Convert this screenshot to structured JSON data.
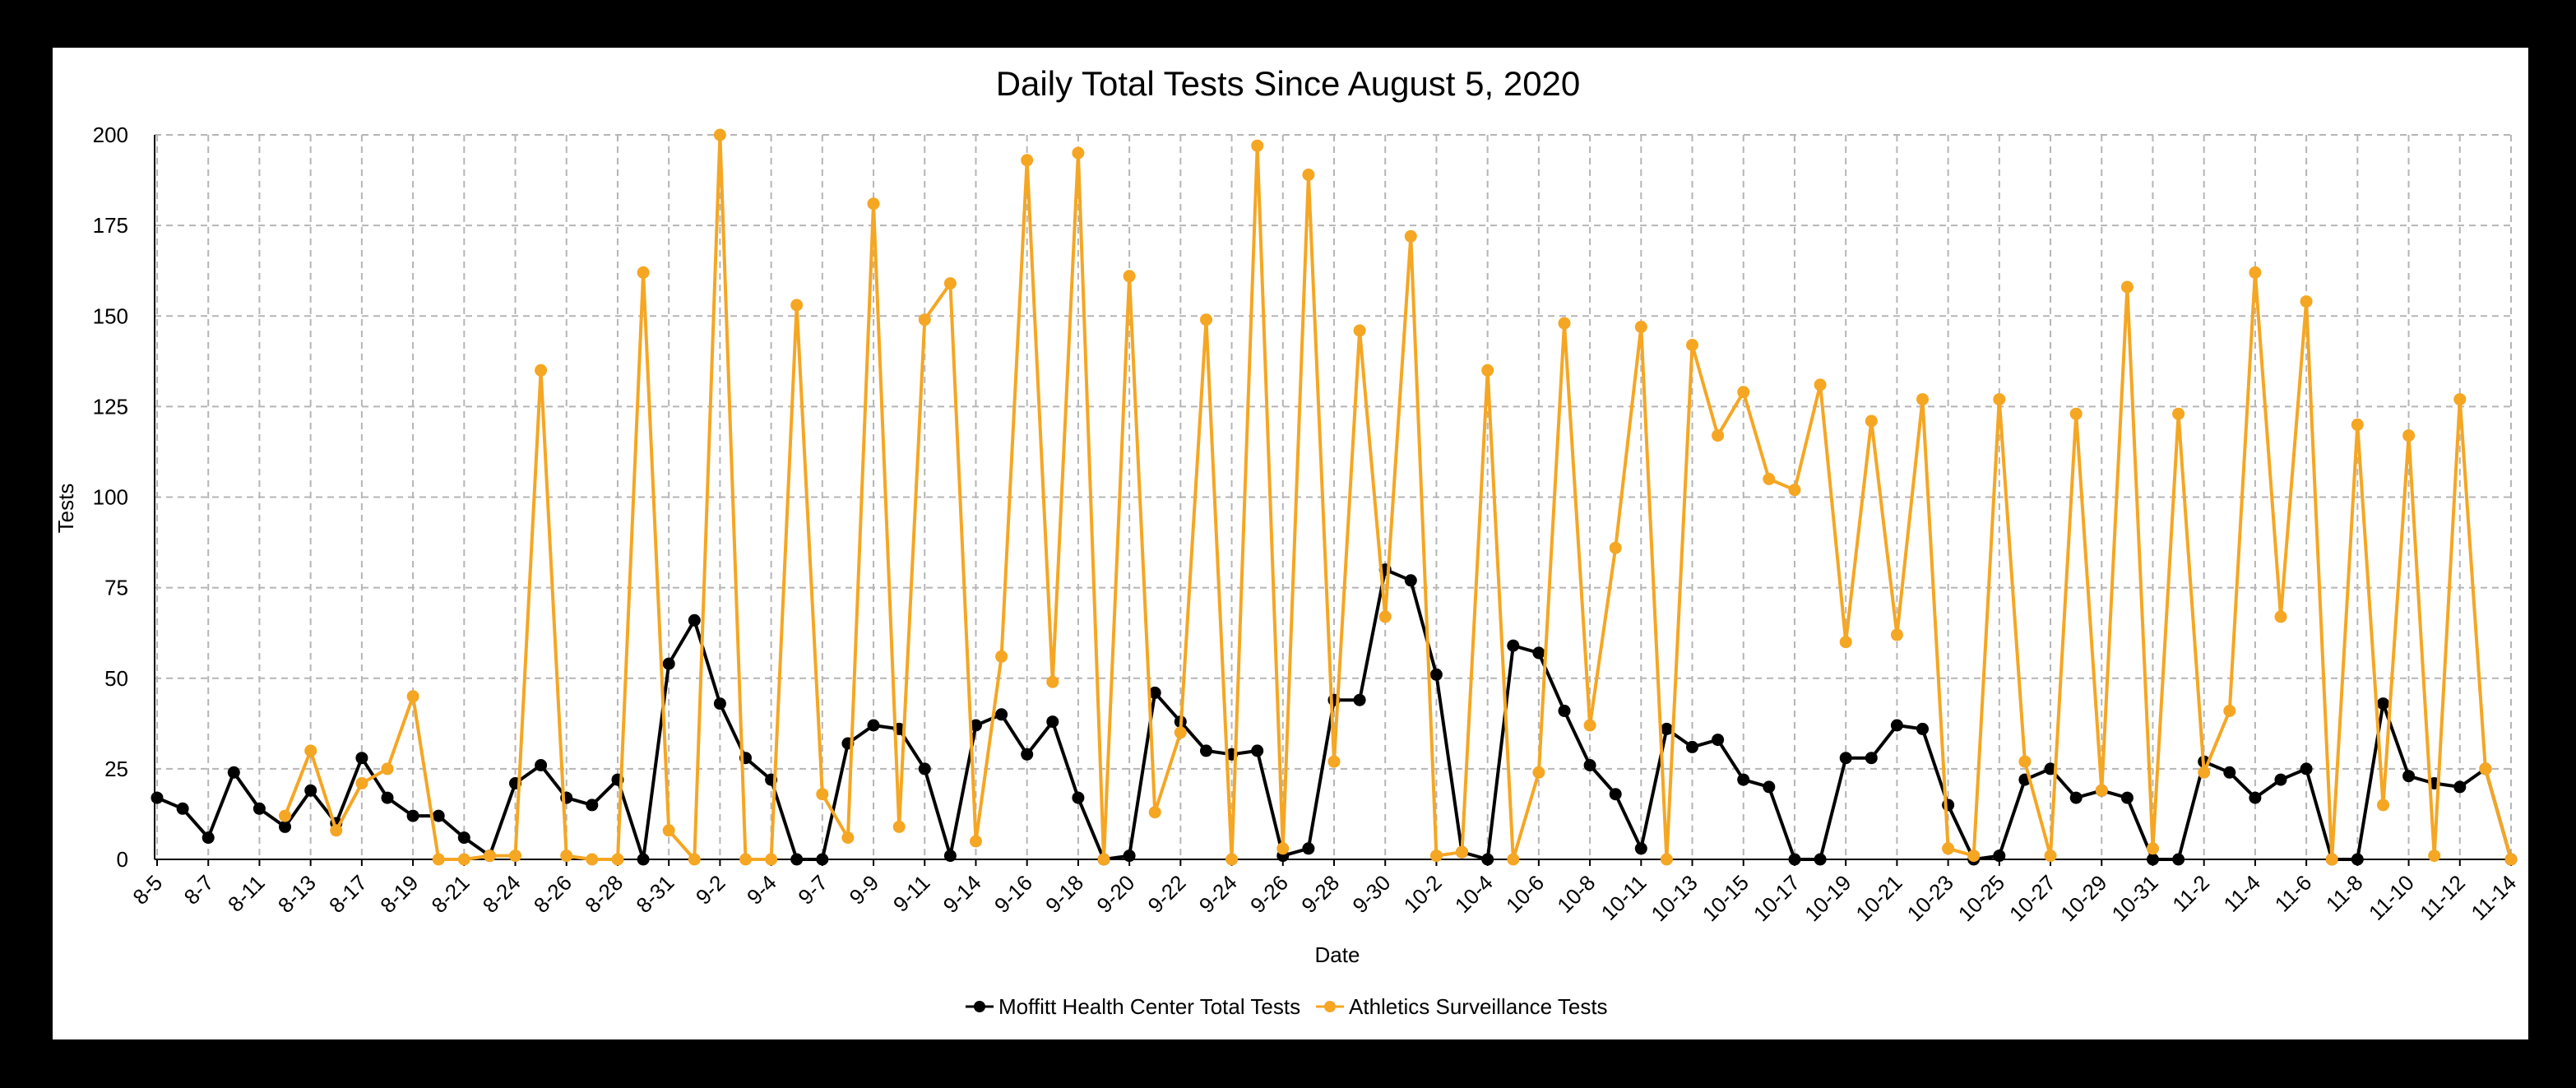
{
  "chart_data": {
    "type": "line",
    "title": "Daily Total Tests Since August 5, 2020",
    "xlabel": "Date",
    "ylabel": "Tests",
    "ylim": [
      0,
      200
    ],
    "yticks": [
      0,
      25,
      50,
      75,
      100,
      125,
      150,
      175,
      200
    ],
    "grid": true,
    "legend_position": "bottom",
    "x": [
      "8-5",
      "8-6",
      "8-7",
      "8-10",
      "8-11",
      "8-12",
      "8-13",
      "8-14",
      "8-17",
      "8-18",
      "8-19",
      "8-20",
      "8-21",
      "8-22",
      "8-24",
      "8-25",
      "8-26",
      "8-27",
      "8-28",
      "8-29",
      "8-31",
      "9-1",
      "9-2",
      "9-3",
      "9-4",
      "9-5",
      "9-7",
      "9-8",
      "9-9",
      "9-10",
      "9-11",
      "9-12",
      "9-14",
      "9-15",
      "9-16",
      "9-17",
      "9-18",
      "9-19",
      "9-20",
      "9-21",
      "9-22",
      "9-23",
      "9-24",
      "9-25",
      "9-26",
      "9-27",
      "9-28",
      "9-29",
      "9-30",
      "10-1",
      "10-2",
      "10-3",
      "10-4",
      "10-5",
      "10-6",
      "10-7",
      "10-8",
      "10-9",
      "10-11",
      "10-12",
      "10-13",
      "10-14",
      "10-15",
      "10-16",
      "10-17",
      "10-18",
      "10-19",
      "10-20",
      "10-21",
      "10-22",
      "10-23",
      "10-24",
      "10-25",
      "10-26",
      "10-27",
      "10-28",
      "10-29",
      "10-30",
      "10-31",
      "11-1",
      "11-2",
      "11-3",
      "11-4",
      "11-5",
      "11-6",
      "11-7",
      "11-8",
      "11-9",
      "11-10",
      "11-11",
      "11-12",
      "11-13",
      "11-14"
    ],
    "xtick_labels": [
      "8-5",
      "8-7",
      "8-11",
      "8-13",
      "8-17",
      "8-19",
      "8-21",
      "8-24",
      "8-26",
      "8-28",
      "8-31",
      "9-2",
      "9-4",
      "9-7",
      "9-9",
      "9-11",
      "9-14",
      "9-16",
      "9-18",
      "9-20",
      "9-22",
      "9-24",
      "9-26",
      "9-28",
      "9-30",
      "10-2",
      "10-4",
      "10-6",
      "10-8",
      "10-11",
      "10-13",
      "10-15",
      "10-17",
      "10-19",
      "10-21",
      "10-23",
      "10-25",
      "10-27",
      "10-29",
      "10-31",
      "11-2",
      "11-4",
      "11-6",
      "11-8",
      "11-10",
      "11-12",
      "11-14"
    ],
    "series": [
      {
        "name": "Moffitt Health Center Total Tests",
        "color": "#000000",
        "values": [
          17,
          14,
          6,
          24,
          14,
          9,
          19,
          10,
          28,
          17,
          12,
          12,
          6,
          1,
          21,
          26,
          17,
          15,
          22,
          0,
          54,
          66,
          43,
          28,
          22,
          0,
          0,
          32,
          37,
          36,
          25,
          1,
          37,
          40,
          29,
          38,
          17,
          0,
          1,
          46,
          38,
          30,
          29,
          30,
          1,
          3,
          44,
          44,
          80,
          77,
          51,
          2,
          0,
          59,
          57,
          41,
          26,
          18,
          3,
          36,
          31,
          33,
          22,
          20,
          0,
          0,
          28,
          28,
          37,
          36,
          15,
          0,
          1,
          22,
          25,
          17,
          19,
          17,
          0,
          0,
          27,
          24,
          17,
          22,
          25,
          0,
          0,
          43,
          23,
          21,
          20,
          25,
          0
        ]
      },
      {
        "name": "Athletics Surveillance Tests",
        "color": "#F5A623",
        "values": [
          null,
          null,
          null,
          null,
          null,
          12,
          30,
          8,
          21,
          25,
          45,
          0,
          0,
          1,
          1,
          135,
          1,
          0,
          0,
          162,
          8,
          0,
          200,
          0,
          0,
          153,
          18,
          6,
          181,
          9,
          149,
          159,
          5,
          56,
          193,
          49,
          195,
          0,
          161,
          13,
          35,
          149,
          0,
          197,
          3,
          189,
          27,
          146,
          67,
          172,
          1,
          2,
          135,
          0,
          24,
          148,
          37,
          86,
          147,
          0,
          142,
          117,
          129,
          105,
          102,
          131,
          60,
          121,
          62,
          127,
          3,
          1,
          127,
          27,
          1,
          123,
          19,
          158,
          3,
          123,
          24,
          41,
          162,
          67,
          154,
          0,
          120,
          15,
          117,
          1,
          127,
          25,
          0
        ]
      }
    ]
  }
}
